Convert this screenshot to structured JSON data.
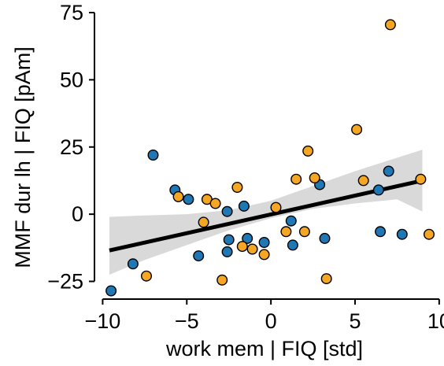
{
  "chart_data": {
    "type": "scatter",
    "xlabel": "work mem | FIQ [std]",
    "ylabel": "MMF dur lh | FIQ [pAm]",
    "xlim": [
      -10.3,
      10.1
    ],
    "ylim": [
      -31,
      75
    ],
    "xticks": [
      -10,
      -5,
      0,
      5,
      10
    ],
    "xtick_labels": [
      "−10",
      "−5",
      "0",
      "5",
      "10"
    ],
    "yticks": [
      -25,
      0,
      25,
      50,
      75
    ],
    "ytick_labels": [
      "−25",
      "0",
      "25",
      "50",
      "75"
    ],
    "grid": false,
    "legend": "none",
    "fit_line": {
      "x": [
        -9.6,
        9.0
      ],
      "y": [
        -13.5,
        12.5
      ],
      "color": "#000000"
    },
    "confidence_band": {
      "x": [
        -9.6,
        -7.5,
        -5.0,
        -2.5,
        0.0,
        2.5,
        5.0,
        7.5,
        9.0
      ],
      "lower": [
        -22.5,
        -17.0,
        -11.5,
        -6.0,
        -1.5,
        2.0,
        4.0,
        5.5,
        1.0
      ],
      "upper": [
        -1.0,
        -0.5,
        0.0,
        1.5,
        5.0,
        10.5,
        16.0,
        21.0,
        24.0
      ],
      "color": "#d9d9d9"
    },
    "series": [
      {
        "color": "#1f77b4",
        "points": [
          [
            -9.5,
            -28.5
          ],
          [
            -8.2,
            -18.5
          ],
          [
            -7.0,
            22.0
          ],
          [
            -5.7,
            9.0
          ],
          [
            -4.9,
            5.5
          ],
          [
            -4.3,
            -15.5
          ],
          [
            -2.6,
            1.0
          ],
          [
            -2.6,
            -14.0
          ],
          [
            -2.5,
            -9.5
          ],
          [
            -1.6,
            3.0
          ],
          [
            -1.4,
            -9.0
          ],
          [
            -0.4,
            -10.5
          ],
          [
            1.2,
            -2.5
          ],
          [
            1.3,
            -11.5
          ],
          [
            2.9,
            11.0
          ],
          [
            3.2,
            -9.0
          ],
          [
            6.4,
            9.0
          ],
          [
            6.5,
            -6.5
          ],
          [
            7.0,
            16.0
          ],
          [
            7.8,
            -7.5
          ]
        ]
      },
      {
        "color": "#f5a623",
        "points": [
          [
            -7.4,
            -23.0
          ],
          [
            -5.5,
            6.5
          ],
          [
            -4.0,
            -3.0
          ],
          [
            -3.8,
            5.5
          ],
          [
            -3.3,
            4.0
          ],
          [
            -2.9,
            -24.5
          ],
          [
            -2.0,
            10.0
          ],
          [
            -1.7,
            -12.0
          ],
          [
            -1.1,
            -13.0
          ],
          [
            -0.4,
            -15.0
          ],
          [
            0.3,
            2.5
          ],
          [
            0.9,
            -6.5
          ],
          [
            1.5,
            13.0
          ],
          [
            2.0,
            -6.5
          ],
          [
            2.2,
            23.5
          ],
          [
            2.6,
            13.5
          ],
          [
            3.3,
            -24.0
          ],
          [
            5.1,
            31.5
          ],
          [
            5.5,
            12.5
          ],
          [
            7.1,
            70.5
          ],
          [
            8.9,
            13.0
          ],
          [
            9.4,
            -7.5
          ]
        ]
      }
    ]
  }
}
